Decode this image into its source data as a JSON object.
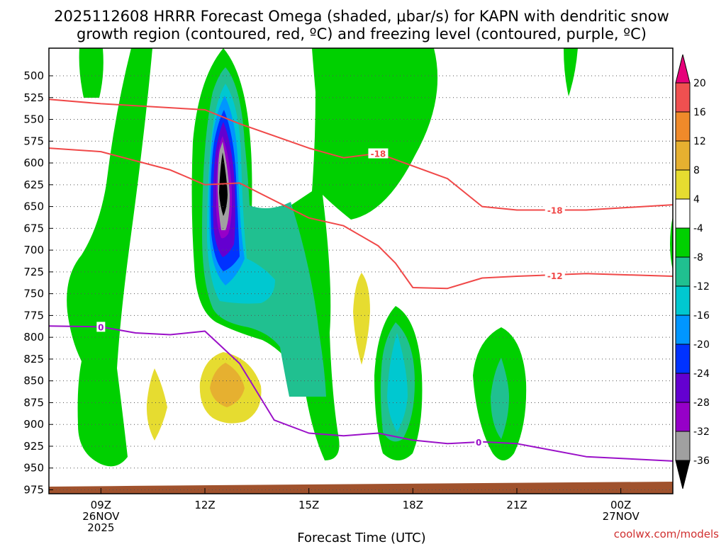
{
  "chart_data": {
    "type": "contour",
    "title_line1": "2025112608 HRRR Forecast Omega (shaded, μbar/s) for KAPN with dendritic snow",
    "title_line2": "growth region (contoured, red, ºC) and freezing level (contoured, purple, ºC)",
    "xlabel": "Forecast Time (UTC)",
    "ylabel": "",
    "x_range_hours": [
      7.5,
      25.5
    ],
    "y_range_hPa": [
      480,
      980
    ],
    "y_ticks": [
      500,
      525,
      550,
      575,
      600,
      625,
      650,
      675,
      700,
      725,
      750,
      775,
      800,
      825,
      850,
      875,
      900,
      925,
      950,
      975
    ],
    "x_ticks": [
      {
        "hour": 9,
        "lines": [
          "09Z",
          "26NOV",
          "2025"
        ]
      },
      {
        "hour": 12,
        "lines": [
          "12Z"
        ]
      },
      {
        "hour": 15,
        "lines": [
          "15Z"
        ]
      },
      {
        "hour": 18,
        "lines": [
          "18Z"
        ]
      },
      {
        "hour": 21,
        "lines": [
          "21Z"
        ]
      },
      {
        "hour": 24,
        "lines": [
          "00Z",
          "27NOV"
        ]
      }
    ],
    "colorbar": {
      "labels": [
        "20",
        "16",
        "12",
        "8",
        "4",
        "-4",
        "-8",
        "-12",
        "-16",
        "-20",
        "-24",
        "-28",
        "-32",
        "-36"
      ],
      "colors": [
        "#ffffff",
        "#f05050",
        "#f08a2a",
        "#e6b030",
        "#e6dc30",
        "#ffffff",
        "#00d000",
        "#20c090",
        "#00c8d0",
        "#0096ff",
        "#0032ff",
        "#6400d0",
        "#9600c8",
        "#a0a0a0",
        "#000000"
      ],
      "top_arrow_color": "#e6007a",
      "bottom_arrow_color": "#000000"
    },
    "isotherms": [
      {
        "label": "-18",
        "color": "#f04848",
        "points": [
          [
            7.5,
            527
          ],
          [
            9,
            532
          ],
          [
            12,
            539
          ],
          [
            13,
            555
          ],
          [
            15,
            583
          ],
          [
            16,
            594
          ],
          [
            17,
            589
          ],
          [
            19,
            618
          ],
          [
            20,
            650
          ],
          [
            21,
            654
          ],
          [
            23,
            654
          ],
          [
            25.5,
            648
          ]
        ]
      },
      {
        "label": "-12",
        "color": "#f04848",
        "points": [
          [
            7.5,
            583
          ],
          [
            9,
            587
          ],
          [
            11,
            608
          ],
          [
            12,
            625
          ],
          [
            13,
            623
          ],
          [
            15,
            663
          ],
          [
            16,
            672
          ],
          [
            17,
            695
          ],
          [
            17.5,
            715
          ],
          [
            18,
            743
          ],
          [
            19,
            744
          ],
          [
            20,
            732
          ],
          [
            21,
            730
          ],
          [
            23,
            727
          ],
          [
            25.5,
            730
          ]
        ]
      },
      {
        "label": "0",
        "color": "#9a10c8",
        "points": [
          [
            7.5,
            787
          ],
          [
            9,
            788
          ],
          [
            10,
            795
          ],
          [
            11,
            797
          ],
          [
            12,
            793
          ],
          [
            13,
            830
          ],
          [
            14,
            895
          ],
          [
            15,
            910
          ],
          [
            16,
            913
          ],
          [
            17,
            910
          ],
          [
            18,
            918
          ],
          [
            19,
            922
          ],
          [
            20,
            920
          ],
          [
            21,
            922
          ],
          [
            23,
            937
          ],
          [
            25.5,
            942
          ]
        ]
      }
    ],
    "contour_labels": [
      {
        "text": "-18",
        "hour": 17,
        "hPa": 589,
        "color": "#f04848"
      },
      {
        "text": "-18",
        "hour": 22.1,
        "hPa": 654,
        "color": "#f04848"
      },
      {
        "text": "-12",
        "hour": 22.1,
        "hPa": 729,
        "color": "#f04848"
      },
      {
        "text": "0",
        "hour": 9,
        "hPa": 788,
        "color": "#9a10c8"
      },
      {
        "text": "0",
        "hour": 19.9,
        "hPa": 920,
        "color": "#9a10c8"
      }
    ],
    "omega_features": [
      {
        "level": "-4",
        "hour": 9.3,
        "hPa": 880,
        "note": "lower-left ascent lobe"
      },
      {
        "level": "-36",
        "hour": 13,
        "hPa": 600,
        "note": "core of strong ascent"
      },
      {
        "level": "-16",
        "hour": 18,
        "hPa": 830,
        "note": "ascent column near 18Z"
      },
      {
        "level": "-12",
        "hour": 21,
        "hPa": 835,
        "note": "ascent column near 21Z"
      },
      {
        "level": "8",
        "hour": 13,
        "hPa": 828,
        "note": "subsidence maximum"
      }
    ]
  },
  "credit": "coolwx.com/models"
}
